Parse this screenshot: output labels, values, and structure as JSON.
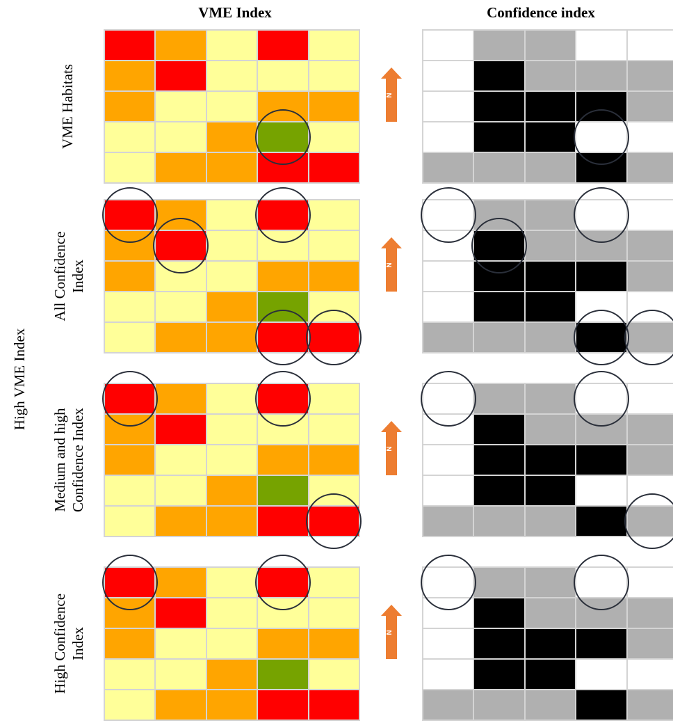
{
  "headers": {
    "left": "VME Index",
    "right": "Confidence index"
  },
  "side_label": "High VME Index",
  "colors": {
    "red": "#ff0000",
    "orange": "#ffa500",
    "yellow": "#ffff99",
    "green": "#76a300",
    "white": "#ffffff",
    "grey": "#b0b0b0",
    "black": "#000000",
    "grid_line": "#d4d4d4",
    "arrow": "#ed7d31",
    "circle": "#2a2f3a"
  },
  "arrow_letter": "N",
  "vme_grid": [
    [
      "red",
      "orange",
      "yellow",
      "red",
      "yellow"
    ],
    [
      "orange",
      "red",
      "yellow",
      "yellow",
      "yellow"
    ],
    [
      "orange",
      "yellow",
      "yellow",
      "orange",
      "orange"
    ],
    [
      "yellow",
      "yellow",
      "orange",
      "green",
      "yellow"
    ],
    [
      "yellow",
      "orange",
      "orange",
      "red",
      "red"
    ]
  ],
  "confidence_grid": [
    [
      "white",
      "grey",
      "grey",
      "white",
      "white"
    ],
    [
      "white",
      "black",
      "grey",
      "grey",
      "grey"
    ],
    [
      "white",
      "black",
      "black",
      "black",
      "grey"
    ],
    [
      "white",
      "black",
      "black",
      "white",
      "white"
    ],
    [
      "grey",
      "grey",
      "grey",
      "black",
      "grey"
    ]
  ],
  "rows": [
    {
      "label": [
        "VME Habitats"
      ],
      "circled_cells": [
        [
          3,
          3
        ]
      ]
    },
    {
      "label": [
        "All Confidence",
        "Index"
      ],
      "circled_cells": [
        [
          0,
          0
        ],
        [
          1,
          1
        ],
        [
          0,
          3
        ],
        [
          4,
          3
        ],
        [
          4,
          4
        ]
      ]
    },
    {
      "label": [
        "Medium and high",
        "Confidence Index"
      ],
      "circled_cells": [
        [
          0,
          0
        ],
        [
          0,
          3
        ],
        [
          4,
          4
        ]
      ]
    },
    {
      "label": [
        "High Confidence",
        "Index"
      ],
      "circled_cells": [
        [
          0,
          0
        ],
        [
          0,
          3
        ]
      ]
    }
  ]
}
